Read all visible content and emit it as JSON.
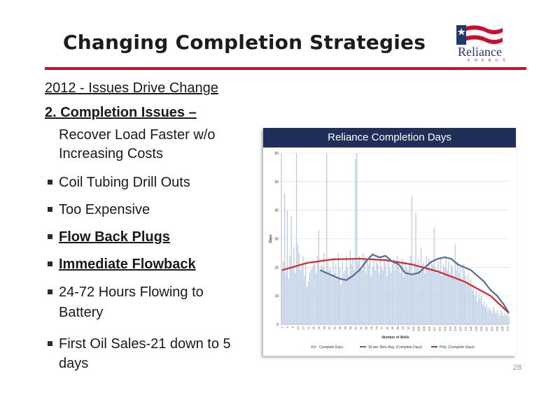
{
  "slide": {
    "title": "Changing Completion Strategies",
    "page_number": "28",
    "subhead": "2012 - Issues Drive Change",
    "item_heading": "2.  Completion Issues –",
    "item_line1": "Recover Load Faster w/o",
    "item_line2": "Increasing Costs",
    "bullets": [
      {
        "line1": "Coil Tubing Drill Outs"
      },
      {
        "line1": "Too Expensive"
      },
      {
        "line1": "Flow Back Plugs"
      },
      {
        "line1": "Immediate Flowback"
      },
      {
        "line1": "24-72 Hours Flowing to",
        "line2": "Battery"
      },
      {
        "line1": "First Oil Sales-21 down to 5",
        "line2": "days"
      }
    ],
    "logo": {
      "name": "Reliance",
      "sub": "ENERGY"
    },
    "colors": {
      "accent_rule": "#c8102e",
      "chart_header": "#1f2f5a",
      "bars": "#b9cbe3",
      "moving_avg": "#4f6f9a",
      "poly": "#d62728"
    }
  },
  "chart_data": {
    "type": "bar",
    "title": "Reliance Completion Days",
    "xlabel": "Number of Wells",
    "ylabel": "Days",
    "ylim": [
      0,
      60
    ],
    "yticks": [
      0,
      10,
      20,
      30,
      40,
      50,
      60
    ],
    "x_ticks": [
      "1",
      "5",
      "9",
      "13",
      "17",
      "21",
      "25",
      "29",
      "33",
      "37",
      "41",
      "45",
      "49",
      "53",
      "57",
      "61",
      "65",
      "69",
      "73",
      "77",
      "81",
      "85",
      "89",
      "93",
      "97",
      "101",
      "105",
      "109",
      "113",
      "117",
      "121",
      "125",
      "129",
      "133",
      "137",
      "141",
      "145",
      "149",
      "153",
      "157",
      "161",
      "165",
      "169",
      "173"
    ],
    "legend": [
      "Complete Days",
      "30 per. Mov. Avg. (Complete Days)",
      "Poly. (Complete Days)"
    ],
    "series": [
      {
        "name": "Complete Days",
        "type": "bar",
        "values": [
          19,
          22,
          46,
          18,
          40,
          16,
          24,
          38,
          20,
          27,
          18,
          60,
          28,
          25,
          19,
          21,
          24,
          17,
          22,
          13,
          15,
          18,
          19,
          20,
          22,
          21,
          18,
          24,
          33,
          19,
          21,
          20,
          25,
          18,
          60,
          22,
          19,
          20,
          17,
          23,
          18,
          21,
          16,
          25,
          20,
          14,
          22,
          18,
          19,
          24,
          20,
          17,
          26,
          21,
          23,
          19,
          58,
          60,
          22,
          24,
          20,
          19,
          25,
          23,
          18,
          22,
          21,
          24,
          17,
          20,
          23,
          19,
          22,
          21,
          18,
          24,
          20,
          19,
          23,
          21,
          17,
          22,
          20,
          18,
          21,
          23,
          19,
          22,
          24,
          20,
          18,
          21,
          23,
          17,
          22,
          20,
          19,
          21,
          24,
          45,
          18,
          22,
          39,
          20,
          23,
          19,
          27,
          21,
          22,
          18,
          24,
          20,
          23,
          19,
          22,
          21,
          34,
          20,
          18,
          22,
          19,
          23,
          17,
          21,
          20,
          24,
          19,
          22,
          18,
          21,
          20,
          17,
          28,
          19,
          22,
          18,
          20,
          16,
          21,
          19,
          17,
          15,
          18,
          14,
          16,
          12,
          14,
          10,
          12,
          8,
          11,
          9,
          10,
          7,
          8,
          6,
          7,
          5,
          6,
          5,
          4,
          6,
          5,
          4,
          5,
          4,
          3,
          5,
          4,
          3,
          4,
          3,
          4,
          3
        ]
      },
      {
        "name": "30 per. Mov. Avg. (Complete Days)",
        "type": "line",
        "points": [
          [
            30,
            19
          ],
          [
            35,
            18
          ],
          [
            40,
            17
          ],
          [
            45,
            16
          ],
          [
            50,
            15.5
          ],
          [
            55,
            17
          ],
          [
            60,
            19
          ],
          [
            65,
            22
          ],
          [
            70,
            24.5
          ],
          [
            75,
            23.5
          ],
          [
            80,
            24
          ],
          [
            85,
            22
          ],
          [
            90,
            21
          ],
          [
            95,
            18
          ],
          [
            100,
            17.5
          ],
          [
            105,
            18
          ],
          [
            110,
            20
          ],
          [
            115,
            22
          ],
          [
            120,
            23
          ],
          [
            125,
            23.5
          ],
          [
            130,
            23
          ],
          [
            135,
            21
          ],
          [
            140,
            20
          ],
          [
            145,
            19
          ],
          [
            150,
            17
          ],
          [
            155,
            15
          ],
          [
            160,
            12
          ],
          [
            165,
            10
          ],
          [
            170,
            7
          ],
          [
            174,
            4
          ]
        ]
      },
      {
        "name": "Poly. (Complete Days)",
        "type": "line",
        "points": [
          [
            1,
            19
          ],
          [
            20,
            21.5
          ],
          [
            40,
            22.8
          ],
          [
            60,
            23
          ],
          [
            80,
            22.5
          ],
          [
            100,
            21
          ],
          [
            120,
            18.5
          ],
          [
            140,
            15
          ],
          [
            160,
            10
          ],
          [
            174,
            4
          ]
        ]
      }
    ]
  }
}
